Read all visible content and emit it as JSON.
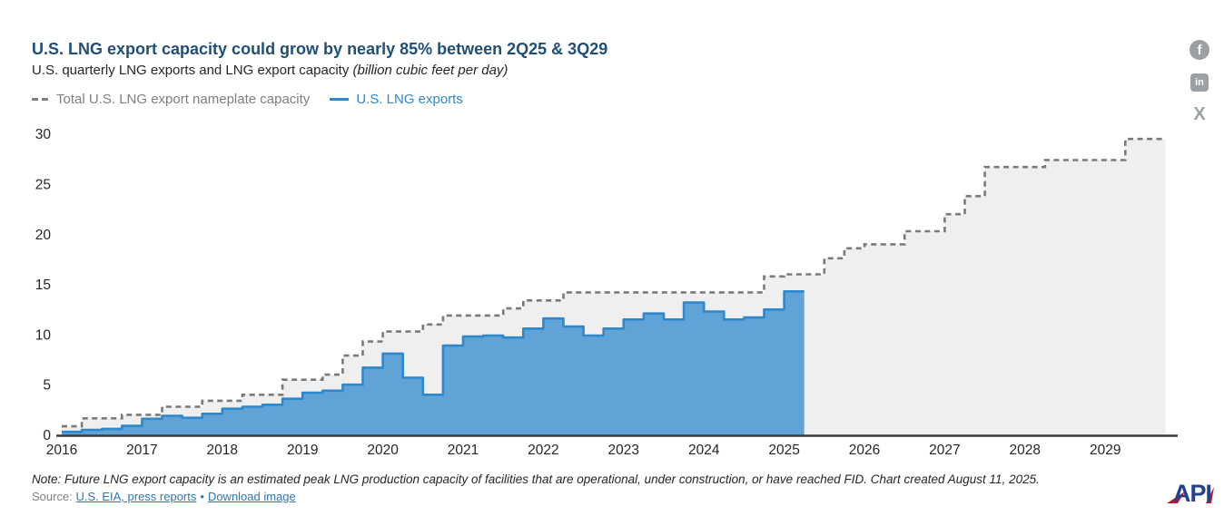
{
  "header": {
    "title": "U.S. LNG export capacity could grow by nearly 85% between 2Q25 & 3Q29",
    "subtitle": "U.S. quarterly LNG exports and LNG export capacity ",
    "subtitle_italic": "(billion cubic feet per day)"
  },
  "legend": [
    {
      "label": "Total U.S. LNG export nameplate capacity",
      "color": "#7f7f7f",
      "style": "dashed"
    },
    {
      "label": "U.S. LNG exports",
      "color": "#2f88cb",
      "style": "solid"
    }
  ],
  "social": [
    {
      "name": "facebook",
      "glyph": "f"
    },
    {
      "name": "linkedin",
      "glyph": "in"
    },
    {
      "name": "x",
      "glyph": "X"
    }
  ],
  "footer": {
    "note": "Note: Future LNG export capacity is an estimated peak LNG production capacity of facilities that are operational, under construction, or have reached FID. Chart created August 11, 2025.",
    "source_label": "Source:",
    "source_link": "U.S. EIA, press reports",
    "separator": "•",
    "download_link": "Download image",
    "logo_text": "API"
  },
  "colors": {
    "title": "#1f4e79",
    "capacity_line": "#7a7a7a",
    "capacity_fill": "#efefef",
    "exports_line": "#2f88cb",
    "exports_fill": "#5fa3d7",
    "axis_line": "#3a3a3a",
    "tick_text": "#262626",
    "logo_blue": "#24418e",
    "logo_red": "#c8102e"
  },
  "chart_data": {
    "type": "area",
    "title": "U.S. quarterly LNG exports and LNG export capacity (billion cubic feet per day)",
    "x_start_quarter": "2016 Q1",
    "x_tick_labels": [
      "2016",
      "2017",
      "2018",
      "2019",
      "2020",
      "2021",
      "2022",
      "2023",
      "2024",
      "2025",
      "2026",
      "2027",
      "2028",
      "2029"
    ],
    "y_ticks": [
      0,
      5,
      10,
      15,
      20,
      25,
      30
    ],
    "ylim": [
      0,
      30
    ],
    "grid": false,
    "legend_position": "top-left",
    "series": [
      {
        "name": "Total U.S. LNG export nameplate capacity",
        "style": "step-dashed-line-with-gray-fill",
        "unit": "billion cubic feet per day",
        "quarters_span": "2016Q1-2029Q3",
        "values": [
          0.85,
          1.65,
          1.65,
          2.0,
          2.0,
          2.8,
          2.8,
          3.4,
          3.4,
          4.0,
          4.0,
          5.5,
          5.5,
          6.0,
          7.9,
          9.3,
          10.3,
          10.3,
          11.0,
          11.9,
          11.9,
          11.9,
          12.6,
          13.4,
          13.4,
          14.2,
          14.2,
          14.2,
          14.2,
          14.2,
          14.2,
          14.2,
          14.2,
          14.2,
          14.2,
          15.8,
          16.0,
          16.0,
          17.6,
          18.6,
          19.0,
          19.0,
          20.3,
          20.3,
          22.0,
          23.8,
          26.7,
          26.7,
          26.7,
          27.4,
          27.4,
          27.4,
          27.4,
          29.5,
          29.5
        ]
      },
      {
        "name": "U.S. LNG exports",
        "style": "step-solid-line-with-blue-fill",
        "unit": "billion cubic feet per day",
        "quarters_span": "2016Q1-2025Q1",
        "values": [
          0.3,
          0.5,
          0.6,
          0.9,
          1.6,
          1.9,
          1.7,
          2.1,
          2.6,
          2.8,
          3.0,
          3.6,
          4.2,
          4.4,
          5.0,
          6.7,
          8.1,
          5.7,
          4.0,
          8.9,
          9.8,
          9.9,
          9.7,
          10.6,
          11.6,
          10.8,
          9.9,
          10.6,
          11.5,
          12.1,
          11.5,
          13.2,
          12.3,
          11.5,
          11.7,
          12.5,
          14.3
        ]
      }
    ]
  }
}
